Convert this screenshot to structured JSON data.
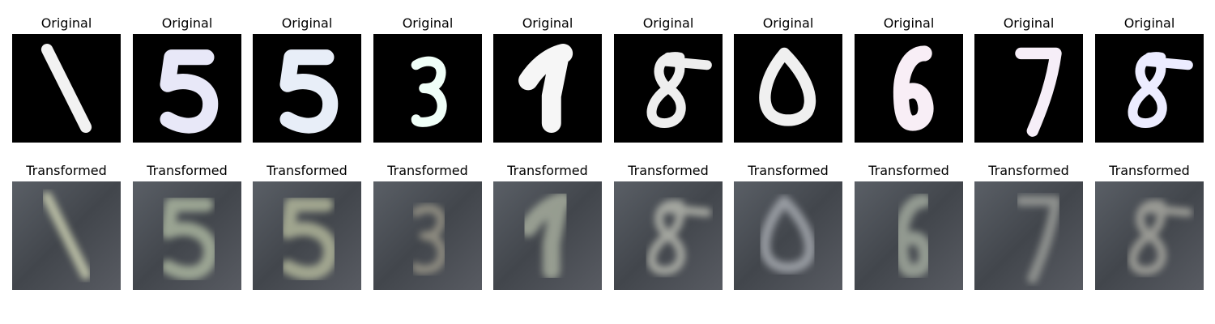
{
  "rows": [
    {
      "kind": "original",
      "label": "Original",
      "background": "#000000",
      "tiles": [
        {
          "digit": "1",
          "color": "#f2f2f2"
        },
        {
          "digit": "5",
          "color": "#e8e8f8"
        },
        {
          "digit": "5",
          "color": "#e8eef8"
        },
        {
          "digit": "3",
          "color": "#f0fff8"
        },
        {
          "digit": "1",
          "color": "#f6f6f6"
        },
        {
          "digit": "8",
          "color": "#eeeeee"
        },
        {
          "digit": "0",
          "color": "#f0f0f0"
        },
        {
          "digit": "6",
          "color": "#f8eef6"
        },
        {
          "digit": "7",
          "color": "#f6eef8"
        },
        {
          "digit": "8",
          "color": "#ececff"
        }
      ]
    },
    {
      "kind": "transformed",
      "label": "Transformed",
      "background": "#4c5058",
      "tiles": [
        {
          "digit": "1",
          "color": "#c9cdb0"
        },
        {
          "digit": "5",
          "color": "#a9b49e"
        },
        {
          "digit": "5",
          "color": "#b0b59a"
        },
        {
          "digit": "3",
          "color": "#9a9688"
        },
        {
          "digit": "1",
          "color": "#a5ac9c"
        },
        {
          "digit": "8",
          "color": "#b5b7ae"
        },
        {
          "digit": "0",
          "color": "#a4a8ae"
        },
        {
          "digit": "6",
          "color": "#a0a89c"
        },
        {
          "digit": "7",
          "color": "#9a9c98"
        },
        {
          "digit": "8",
          "color": "#a8a8a0"
        }
      ]
    }
  ]
}
